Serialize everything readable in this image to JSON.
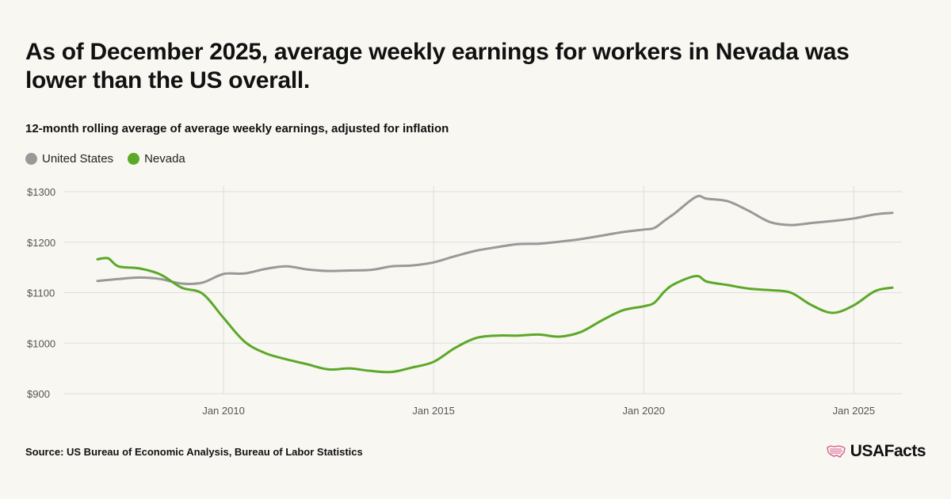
{
  "title": "As of December 2025, average weekly earnings for workers in Nevada was lower than the US overall.",
  "subtitle": "12-month rolling average of average weekly earnings, adjusted for inflation",
  "source": "Source: US Bureau of Economic Analysis, Bureau of Labor Statistics",
  "brand": {
    "name": "USAFacts",
    "icon": "usa-map-flag-icon",
    "icon_color": "#d6538a"
  },
  "colors": {
    "united_states": "#999999",
    "nevada": "#5ca829",
    "grid": "#dddddd",
    "axis_text": "#555555"
  },
  "legend": [
    {
      "label": "United States",
      "color": "#999999"
    },
    {
      "label": "Nevada",
      "color": "#5ca829"
    }
  ],
  "chart_data": {
    "type": "line",
    "title": "As of December 2025, average weekly earnings for workers in Nevada was lower than the US overall.",
    "subtitle": "12-month rolling average of average weekly earnings, adjusted for inflation",
    "xlabel": "",
    "ylabel": "",
    "x_ticks": [
      "2010-01",
      "2015-01",
      "2020-01",
      "2025-01"
    ],
    "x_tick_labels": [
      "Jan 2010",
      "Jan 2015",
      "Jan 2020",
      "Jan 2025"
    ],
    "y_ticks": [
      900,
      1000,
      1100,
      1200,
      1300
    ],
    "y_tick_labels": [
      "$900",
      "$1000",
      "$1100",
      "$1200",
      "$1300"
    ],
    "ylim": [
      900,
      1300
    ],
    "xlim": [
      "2007-01",
      "2025-12"
    ],
    "grid": true,
    "legend_position": "top-left",
    "series": [
      {
        "name": "United States",
        "color": "#999999",
        "points": [
          [
            "2007-01",
            1123
          ],
          [
            "2007-07",
            1127
          ],
          [
            "2008-01",
            1130
          ],
          [
            "2008-07",
            1127
          ],
          [
            "2009-01",
            1118
          ],
          [
            "2009-07",
            1120
          ],
          [
            "2010-01",
            1137
          ],
          [
            "2010-07",
            1138
          ],
          [
            "2011-01",
            1147
          ],
          [
            "2011-07",
            1152
          ],
          [
            "2012-01",
            1146
          ],
          [
            "2012-07",
            1143
          ],
          [
            "2013-01",
            1144
          ],
          [
            "2013-07",
            1145
          ],
          [
            "2014-01",
            1152
          ],
          [
            "2014-07",
            1154
          ],
          [
            "2015-01",
            1160
          ],
          [
            "2015-07",
            1172
          ],
          [
            "2016-01",
            1183
          ],
          [
            "2016-07",
            1190
          ],
          [
            "2017-01",
            1196
          ],
          [
            "2017-07",
            1197
          ],
          [
            "2018-01",
            1201
          ],
          [
            "2018-07",
            1206
          ],
          [
            "2019-01",
            1213
          ],
          [
            "2019-07",
            1220
          ],
          [
            "2020-01",
            1225
          ],
          [
            "2020-04",
            1228
          ],
          [
            "2020-07",
            1243
          ],
          [
            "2020-10",
            1258
          ],
          [
            "2021-04",
            1290
          ],
          [
            "2021-07",
            1286
          ],
          [
            "2022-01",
            1281
          ],
          [
            "2022-07",
            1262
          ],
          [
            "2023-01",
            1240
          ],
          [
            "2023-07",
            1234
          ],
          [
            "2024-01",
            1238
          ],
          [
            "2024-07",
            1242
          ],
          [
            "2025-01",
            1247
          ],
          [
            "2025-07",
            1255
          ],
          [
            "2025-12",
            1258
          ]
        ]
      },
      {
        "name": "Nevada",
        "color": "#5ca829",
        "points": [
          [
            "2007-01",
            1166
          ],
          [
            "2007-04",
            1168
          ],
          [
            "2007-07",
            1152
          ],
          [
            "2008-01",
            1148
          ],
          [
            "2008-07",
            1136
          ],
          [
            "2009-01",
            1110
          ],
          [
            "2009-07",
            1098
          ],
          [
            "2010-01",
            1050
          ],
          [
            "2010-07",
            1003
          ],
          [
            "2011-01",
            980
          ],
          [
            "2011-07",
            968
          ],
          [
            "2012-01",
            958
          ],
          [
            "2012-07",
            948
          ],
          [
            "2013-01",
            950
          ],
          [
            "2013-07",
            945
          ],
          [
            "2014-01",
            943
          ],
          [
            "2014-07",
            952
          ],
          [
            "2015-01",
            963
          ],
          [
            "2015-07",
            990
          ],
          [
            "2016-01",
            1010
          ],
          [
            "2016-07",
            1015
          ],
          [
            "2017-01",
            1015
          ],
          [
            "2017-07",
            1017
          ],
          [
            "2018-01",
            1013
          ],
          [
            "2018-07",
            1022
          ],
          [
            "2019-01",
            1045
          ],
          [
            "2019-07",
            1065
          ],
          [
            "2020-01",
            1073
          ],
          [
            "2020-04",
            1080
          ],
          [
            "2020-07",
            1103
          ],
          [
            "2020-10",
            1118
          ],
          [
            "2021-04",
            1133
          ],
          [
            "2021-07",
            1122
          ],
          [
            "2022-01",
            1115
          ],
          [
            "2022-07",
            1108
          ],
          [
            "2023-01",
            1105
          ],
          [
            "2023-07",
            1100
          ],
          [
            "2024-01",
            1075
          ],
          [
            "2024-07",
            1060
          ],
          [
            "2025-01",
            1075
          ],
          [
            "2025-07",
            1103
          ],
          [
            "2025-12",
            1110
          ]
        ]
      }
    ]
  }
}
